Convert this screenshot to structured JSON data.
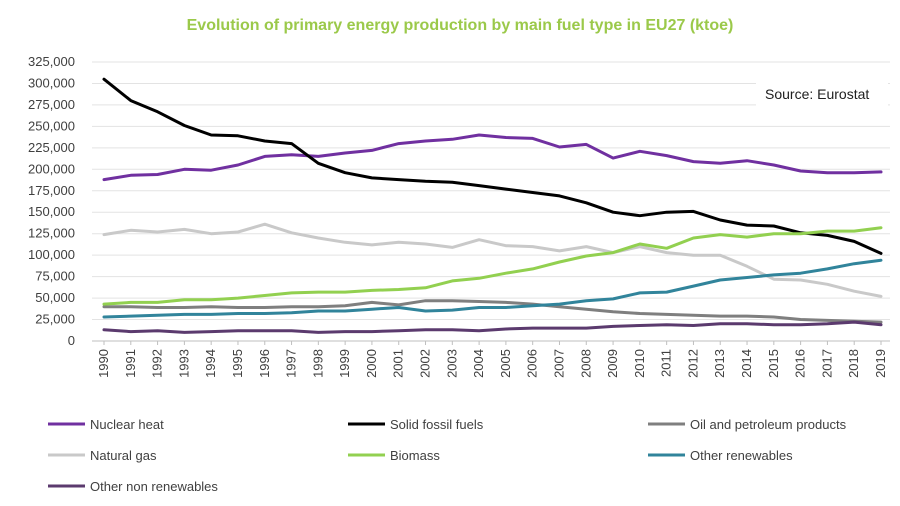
{
  "chart_data": {
    "type": "line",
    "title": "Evolution of primary energy production by main fuel type in EU27 (ktoe)",
    "annotation": "Source: Eurostat",
    "xlabel": "",
    "ylabel": "",
    "ylim": [
      0,
      325000
    ],
    "yticks": [
      "0",
      "25,000",
      "50,000",
      "75,000",
      "100,000",
      "125,000",
      "150,000",
      "175,000",
      "200,000",
      "225,000",
      "250,000",
      "275,000",
      "300,000",
      "325,000"
    ],
    "grid": true,
    "legend_position": "bottom",
    "x": [
      "1990",
      "1991",
      "1992",
      "1993",
      "1994",
      "1995",
      "1996",
      "1997",
      "1998",
      "1999",
      "2000",
      "2001",
      "2002",
      "2003",
      "2004",
      "2005",
      "2006",
      "2007",
      "2008",
      "2009",
      "2010",
      "2011",
      "2012",
      "2013",
      "2014",
      "2015",
      "2016",
      "2017",
      "2018",
      "2019"
    ],
    "series": [
      {
        "name": "Nuclear heat",
        "color": "#7030a0",
        "values": [
          188000,
          193000,
          194000,
          200000,
          199000,
          205000,
          215000,
          217000,
          215000,
          219000,
          222000,
          230000,
          233000,
          235000,
          240000,
          237000,
          236000,
          226000,
          229000,
          213000,
          221000,
          216000,
          209000,
          207000,
          210000,
          205000,
          198000,
          196000,
          196000,
          197000
        ]
      },
      {
        "name": "Solid fossil fuels",
        "color": "#000000",
        "values": [
          305000,
          280000,
          267000,
          251000,
          240000,
          239000,
          233000,
          230000,
          207000,
          196000,
          190000,
          188000,
          186000,
          185000,
          181000,
          177000,
          173000,
          169000,
          161000,
          150000,
          146000,
          150000,
          151000,
          141000,
          135000,
          134000,
          126000,
          123000,
          116000,
          102000
        ]
      },
      {
        "name": "Oil and petroleum products",
        "color": "#7f7f7f",
        "values": [
          40000,
          40000,
          39000,
          39000,
          40000,
          39000,
          39000,
          40000,
          40000,
          41000,
          45000,
          42000,
          47000,
          47000,
          46000,
          45000,
          43000,
          40000,
          37000,
          34000,
          32000,
          31000,
          30000,
          29000,
          29000,
          28000,
          25000,
          24000,
          23000,
          22000
        ]
      },
      {
        "name": "Natural gas",
        "color": "#c9c9c9",
        "values": [
          124000,
          129000,
          127000,
          130000,
          125000,
          127000,
          136000,
          126000,
          120000,
          115000,
          112000,
          115000,
          113000,
          109000,
          118000,
          111000,
          110000,
          105000,
          110000,
          103000,
          110000,
          103000,
          100000,
          100000,
          87000,
          72000,
          71000,
          66000,
          58000,
          52000
        ]
      },
      {
        "name": "Biomass",
        "color": "#92d050",
        "values": [
          43000,
          45000,
          45000,
          48000,
          48000,
          50000,
          53000,
          56000,
          57000,
          57000,
          59000,
          60000,
          62000,
          70000,
          73000,
          79000,
          84000,
          92000,
          99000,
          103000,
          113000,
          108000,
          120000,
          124000,
          121000,
          125000,
          125000,
          128000,
          128000,
          132000
        ]
      },
      {
        "name": "Other renewables",
        "color": "#31849b",
        "values": [
          28000,
          29000,
          30000,
          31000,
          31000,
          32000,
          32000,
          33000,
          35000,
          35000,
          37000,
          39000,
          35000,
          36000,
          39000,
          39000,
          41000,
          43000,
          47000,
          49000,
          56000,
          57000,
          64000,
          71000,
          74000,
          77000,
          79000,
          84000,
          90000,
          94000
        ]
      },
      {
        "name": "Other non renewables",
        "color": "#5b3a6e",
        "values": [
          13000,
          11000,
          12000,
          10000,
          11000,
          12000,
          12000,
          12000,
          10000,
          11000,
          11000,
          12000,
          13000,
          13000,
          12000,
          14000,
          15000,
          15000,
          15000,
          17000,
          18000,
          19000,
          18000,
          20000,
          20000,
          19000,
          19000,
          20000,
          22000,
          19000
        ]
      }
    ]
  }
}
